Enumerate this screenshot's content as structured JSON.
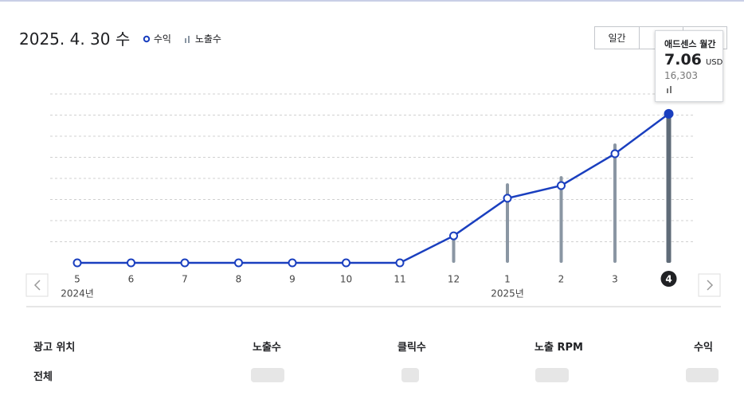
{
  "header": {
    "date": "2025. 4. 30 수",
    "buttons": [
      "일간"
    ]
  },
  "chart_data": {
    "type": "bar-line",
    "categories": [
      "5",
      "6",
      "7",
      "8",
      "9",
      "10",
      "11",
      "12",
      "1",
      "2",
      "3",
      "4"
    ],
    "year_labels": [
      "2024년",
      null,
      null,
      null,
      null,
      null,
      null,
      null,
      "2025년",
      null,
      null,
      null
    ],
    "series": [
      {
        "name": "수익",
        "type": "line",
        "color": "#1a3fbf",
        "values": [
          0,
          0,
          0,
          0,
          0,
          0,
          0,
          1.28,
          3.06,
          3.66,
          5.17,
          7.06
        ]
      },
      {
        "name": "노출수",
        "type": "bar",
        "axis": "y2",
        "color": "#8a96a3",
        "values": [
          0,
          0,
          0,
          0,
          0,
          0,
          0,
          2964,
          8718,
          9503,
          13077,
          16303
        ],
        "value_labels": [
          null,
          null,
          null,
          null,
          null,
          null,
          null,
          null,
          null,
          null,
          null,
          "16,303"
        ]
      }
    ],
    "ylim": [
      0,
      8
    ],
    "y2lim": [
      0,
      18500
    ],
    "grid": true,
    "tooltip": {
      "title": "애드센스 월간",
      "unit": "USD"
    }
  },
  "table": {
    "columns": [
      "광고 위치",
      "노출수",
      "클릭수",
      "노출 RPM",
      "수익"
    ],
    "rows": [
      [
        "전체"
      ]
    ]
  }
}
